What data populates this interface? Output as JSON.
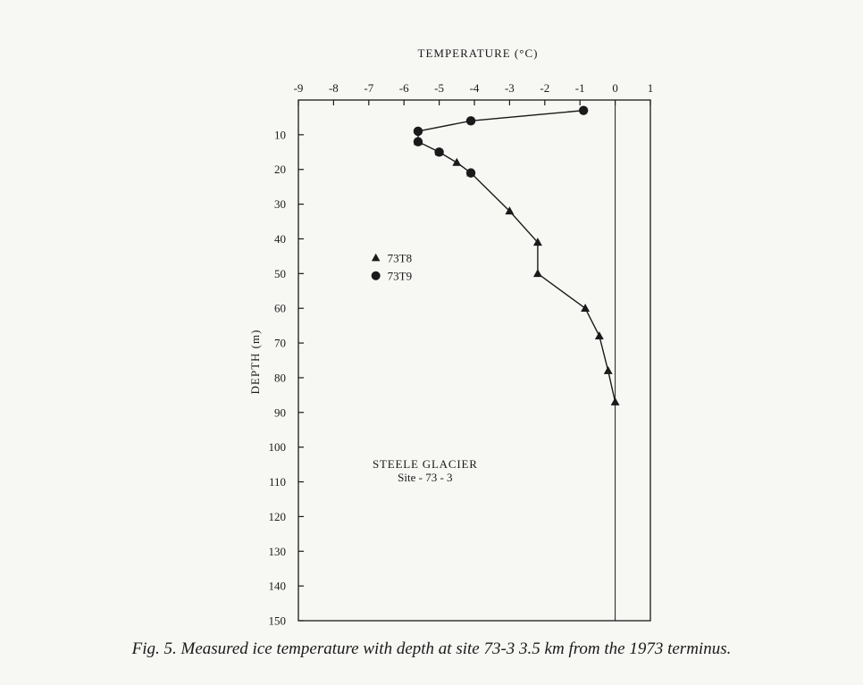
{
  "chart_data": {
    "type": "scatter",
    "title": "",
    "xlabel": "TEMPERATURE (°C)",
    "ylabel": "DEPTH (m)",
    "x_position": "top",
    "y_inverted": true,
    "xlim": [
      -9,
      1
    ],
    "ylim": [
      0,
      150
    ],
    "xticks": [
      -9,
      -8,
      -7,
      -6,
      -5,
      -4,
      -3,
      -2,
      -1,
      0,
      1
    ],
    "yticks": [
      10,
      20,
      30,
      40,
      50,
      60,
      70,
      80,
      90,
      100,
      110,
      120,
      130,
      140,
      150
    ],
    "reference_line_x": 0,
    "grid": false,
    "legend_position": "left-middle",
    "series": [
      {
        "name": "73T8",
        "marker": "triangle",
        "points": [
          {
            "x": -5.6,
            "y": 12
          },
          {
            "x": -5.0,
            "y": 15
          },
          {
            "x": -4.5,
            "y": 18
          },
          {
            "x": -4.1,
            "y": 21
          },
          {
            "x": -3.0,
            "y": 32
          },
          {
            "x": -2.2,
            "y": 41
          },
          {
            "x": -2.2,
            "y": 50
          },
          {
            "x": -0.85,
            "y": 60
          },
          {
            "x": -0.45,
            "y": 68
          },
          {
            "x": -0.2,
            "y": 78
          },
          {
            "x": 0.0,
            "y": 87
          }
        ]
      },
      {
        "name": "73T9",
        "marker": "circle",
        "points": [
          {
            "x": -0.9,
            "y": 3
          },
          {
            "x": -4.1,
            "y": 6
          },
          {
            "x": -5.6,
            "y": 9
          },
          {
            "x": -5.6,
            "y": 12
          },
          {
            "x": -5.0,
            "y": 15
          },
          {
            "x": -4.1,
            "y": 21
          }
        ]
      }
    ],
    "connecting_line": [
      {
        "x": -0.9,
        "y": 3
      },
      {
        "x": -4.1,
        "y": 6
      },
      {
        "x": -5.6,
        "y": 9
      },
      {
        "x": -5.6,
        "y": 12
      },
      {
        "x": -5.0,
        "y": 15
      },
      {
        "x": -4.5,
        "y": 18
      },
      {
        "x": -4.1,
        "y": 21
      },
      {
        "x": -3.0,
        "y": 32
      },
      {
        "x": -2.2,
        "y": 41
      },
      {
        "x": -2.2,
        "y": 50
      },
      {
        "x": -0.85,
        "y": 60
      },
      {
        "x": -0.45,
        "y": 68
      },
      {
        "x": -0.2,
        "y": 78
      },
      {
        "x": 0.0,
        "y": 87
      }
    ],
    "annotation": {
      "line1": "STEELE GLACIER",
      "line2": "Site - 73 - 3",
      "anchor_x": -5.4,
      "anchor_y": 106
    }
  },
  "caption": "Fig. 5.  Measured ice temperature with depth at site 73-3 3.5 km from the 1973 terminus."
}
